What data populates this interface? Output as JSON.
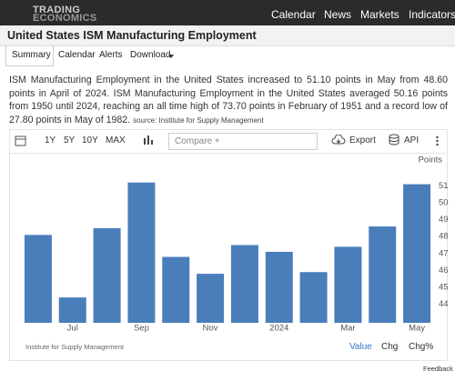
{
  "nav": {
    "logo_top": "TRADING",
    "logo_bottom": "ECONOMICS",
    "items": [
      "Calendar",
      "News",
      "Markets",
      "Indicators"
    ]
  },
  "header": {
    "title": "United States ISM Manufacturing Employment"
  },
  "tabs": [
    "Summary",
    "Calendar",
    "Alerts",
    "Download"
  ],
  "summary": {
    "text": "ISM Manufacturing Employment in the United States increased to 51.10 points in May from 48.60 points in April of 2024. ISM Manufacturing Employment in the United States averaged 50.16 points from 1950 until 2024, reaching an all time high of 73.70 points in February of 1951 and a record low of 27.80 points in May of 1982.",
    "source": "source: Institute for Supply Management"
  },
  "toolbar": {
    "ranges": [
      "1Y",
      "5Y",
      "10Y",
      "MAX"
    ],
    "compare": "Compare +",
    "export": "Export",
    "api": "API"
  },
  "chart_data": {
    "type": "bar",
    "y_label": "Points",
    "categories": [
      null,
      "Jul",
      null,
      "Sep",
      null,
      "Nov",
      null,
      "2024",
      null,
      "Mar",
      null,
      "May"
    ],
    "values": [
      48.1,
      44.4,
      48.5,
      51.2,
      46.8,
      45.8,
      47.5,
      47.1,
      45.9,
      47.4,
      48.6,
      51.1
    ],
    "color": "#4a7ebb",
    "ylim": [
      42.9,
      52.1
    ],
    "yticks": [
      44,
      45,
      46,
      47,
      48,
      49,
      50,
      51
    ],
    "grid": false,
    "source": "Institute for Supply Management"
  },
  "footer": {
    "modes": [
      "Value",
      "Chg",
      "Chg%"
    ],
    "feedback": "Feedback"
  }
}
